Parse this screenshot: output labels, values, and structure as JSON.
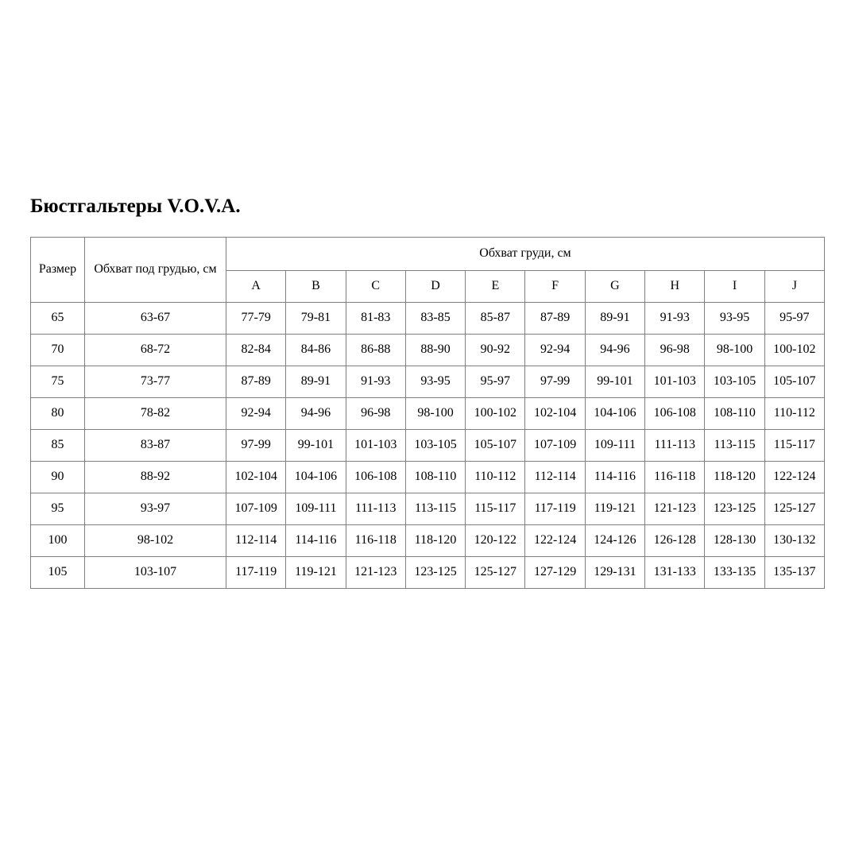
{
  "page": {
    "title": "Бюстгальтеры V.O.V.A.",
    "background_color": "#ffffff",
    "border_color": "#808080",
    "text_color": "#000000"
  },
  "table": {
    "size_header": "Размер",
    "underbust_header": "Обхват под грудью, см",
    "bust_header": "Обхват груди, см",
    "cup_labels": [
      "A",
      "B",
      "C",
      "D",
      "E",
      "F",
      "G",
      "H",
      "I",
      "J"
    ],
    "rows": [
      {
        "size": "65",
        "underbust": "63-67",
        "cups": [
          "77-79",
          "79-81",
          "81-83",
          "83-85",
          "85-87",
          "87-89",
          "89-91",
          "91-93",
          "93-95",
          "95-97"
        ]
      },
      {
        "size": "70",
        "underbust": "68-72",
        "cups": [
          "82-84",
          "84-86",
          "86-88",
          "88-90",
          "90-92",
          "92-94",
          "94-96",
          "96-98",
          "98-100",
          "100-102"
        ]
      },
      {
        "size": "75",
        "underbust": "73-77",
        "cups": [
          "87-89",
          "89-91",
          "91-93",
          "93-95",
          "95-97",
          "97-99",
          "99-101",
          "101-103",
          "103-105",
          "105-107"
        ]
      },
      {
        "size": "80",
        "underbust": "78-82",
        "cups": [
          "92-94",
          "94-96",
          "96-98",
          "98-100",
          "100-102",
          "102-104",
          "104-106",
          "106-108",
          "108-110",
          "110-112"
        ]
      },
      {
        "size": "85",
        "underbust": "83-87",
        "cups": [
          "97-99",
          "99-101",
          "101-103",
          "103-105",
          "105-107",
          "107-109",
          "109-111",
          "111-113",
          "113-115",
          "115-117"
        ]
      },
      {
        "size": "90",
        "underbust": "88-92",
        "cups": [
          "102-104",
          "104-106",
          "106-108",
          "108-110",
          "110-112",
          "112-114",
          "114-116",
          "116-118",
          "118-120",
          "122-124"
        ]
      },
      {
        "size": "95",
        "underbust": "93-97",
        "cups": [
          "107-109",
          "109-111",
          "111-113",
          "113-115",
          "115-117",
          "117-119",
          "119-121",
          "121-123",
          "123-125",
          "125-127"
        ]
      },
      {
        "size": "100",
        "underbust": "98-102",
        "cups": [
          "112-114",
          "114-116",
          "116-118",
          "118-120",
          "120-122",
          "122-124",
          "124-126",
          "126-128",
          "128-130",
          "130-132"
        ]
      },
      {
        "size": "105",
        "underbust": "103-107",
        "cups": [
          "117-119",
          "119-121",
          "121-123",
          "123-125",
          "125-127",
          "127-129",
          "129-131",
          "131-133",
          "133-135",
          "135-137"
        ]
      }
    ]
  }
}
